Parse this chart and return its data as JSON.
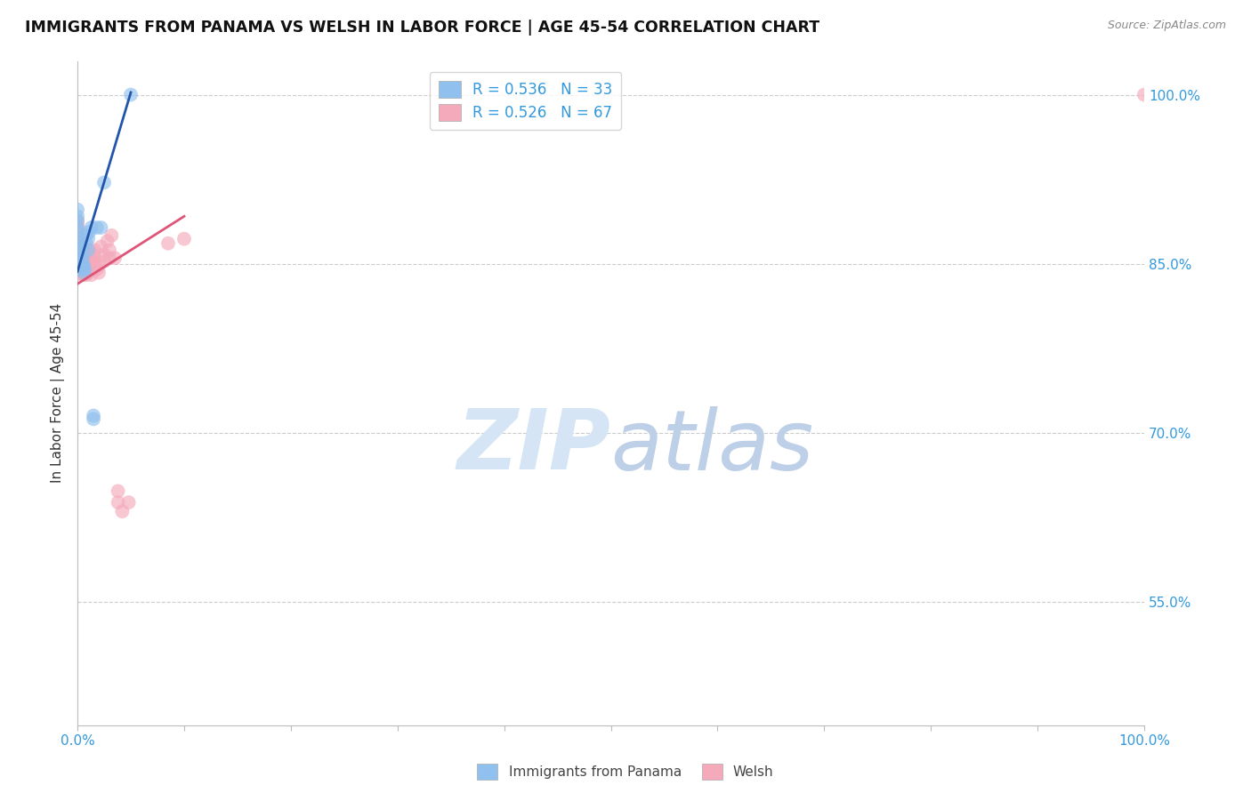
{
  "title": "IMMIGRANTS FROM PANAMA VS WELSH IN LABOR FORCE | AGE 45-54 CORRELATION CHART",
  "source": "Source: ZipAtlas.com",
  "ylabel": "In Labor Force | Age 45-54",
  "xlim": [
    0.0,
    1.0
  ],
  "ylim": [
    0.44,
    1.03
  ],
  "yticks": [
    0.55,
    0.7,
    0.85,
    1.0
  ],
  "ytick_labels": [
    "55.0%",
    "70.0%",
    "85.0%",
    "100.0%"
  ],
  "blue_color": "#90C0EE",
  "pink_color": "#F4AABB",
  "blue_line_color": "#2255AA",
  "pink_line_color": "#DD5577",
  "panama_x": [
    0.0,
    0.0,
    0.0,
    0.0,
    0.0,
    0.0,
    0.0,
    0.0,
    0.0,
    0.0,
    0.0,
    0.0,
    0.0,
    0.004,
    0.004,
    0.005,
    0.005,
    0.005,
    0.006,
    0.006,
    0.007,
    0.008,
    0.008,
    0.01,
    0.01,
    0.011,
    0.013,
    0.015,
    0.015,
    0.018,
    0.022,
    0.025,
    0.05
  ],
  "panama_y": [
    0.845,
    0.848,
    0.855,
    0.858,
    0.862,
    0.865,
    0.868,
    0.872,
    0.878,
    0.882,
    0.888,
    0.892,
    0.898,
    0.845,
    0.852,
    0.848,
    0.855,
    0.862,
    0.842,
    0.848,
    0.845,
    0.868,
    0.875,
    0.862,
    0.872,
    0.878,
    0.882,
    0.712,
    0.715,
    0.882,
    0.882,
    0.922,
    1.0
  ],
  "welsh_x": [
    0.0,
    0.0,
    0.0,
    0.0,
    0.0,
    0.0,
    0.0,
    0.0,
    0.0,
    0.0,
    0.0,
    0.0,
    0.0,
    0.0,
    0.0,
    0.0,
    0.0,
    0.0,
    0.0,
    0.0,
    0.003,
    0.004,
    0.004,
    0.004,
    0.005,
    0.005,
    0.005,
    0.005,
    0.006,
    0.006,
    0.006,
    0.007,
    0.007,
    0.007,
    0.008,
    0.008,
    0.009,
    0.009,
    0.01,
    0.01,
    0.01,
    0.011,
    0.011,
    0.012,
    0.012,
    0.013,
    0.015,
    0.015,
    0.016,
    0.016,
    0.018,
    0.02,
    0.02,
    0.022,
    0.025,
    0.025,
    0.028,
    0.03,
    0.03,
    0.032,
    0.035,
    0.038,
    0.038,
    0.042,
    0.048,
    0.085,
    0.1,
    1.0
  ],
  "welsh_y": [
    0.845,
    0.845,
    0.848,
    0.85,
    0.852,
    0.855,
    0.855,
    0.858,
    0.86,
    0.862,
    0.865,
    0.867,
    0.87,
    0.872,
    0.875,
    0.878,
    0.88,
    0.882,
    0.885,
    0.888,
    0.845,
    0.842,
    0.845,
    0.848,
    0.84,
    0.843,
    0.846,
    0.85,
    0.84,
    0.845,
    0.85,
    0.842,
    0.848,
    0.855,
    0.84,
    0.845,
    0.842,
    0.848,
    0.842,
    0.845,
    0.85,
    0.855,
    0.862,
    0.845,
    0.85,
    0.84,
    0.852,
    0.858,
    0.855,
    0.862,
    0.845,
    0.842,
    0.848,
    0.865,
    0.852,
    0.858,
    0.87,
    0.855,
    0.862,
    0.875,
    0.855,
    0.648,
    0.638,
    0.63,
    0.638,
    0.868,
    0.872,
    1.0
  ],
  "blue_trendline_x": [
    0.0,
    0.05
  ],
  "blue_trendline_y": [
    0.843,
    1.002
  ],
  "pink_trendline_x": [
    0.0,
    0.1
  ],
  "pink_trendline_y": [
    0.832,
    0.892
  ]
}
